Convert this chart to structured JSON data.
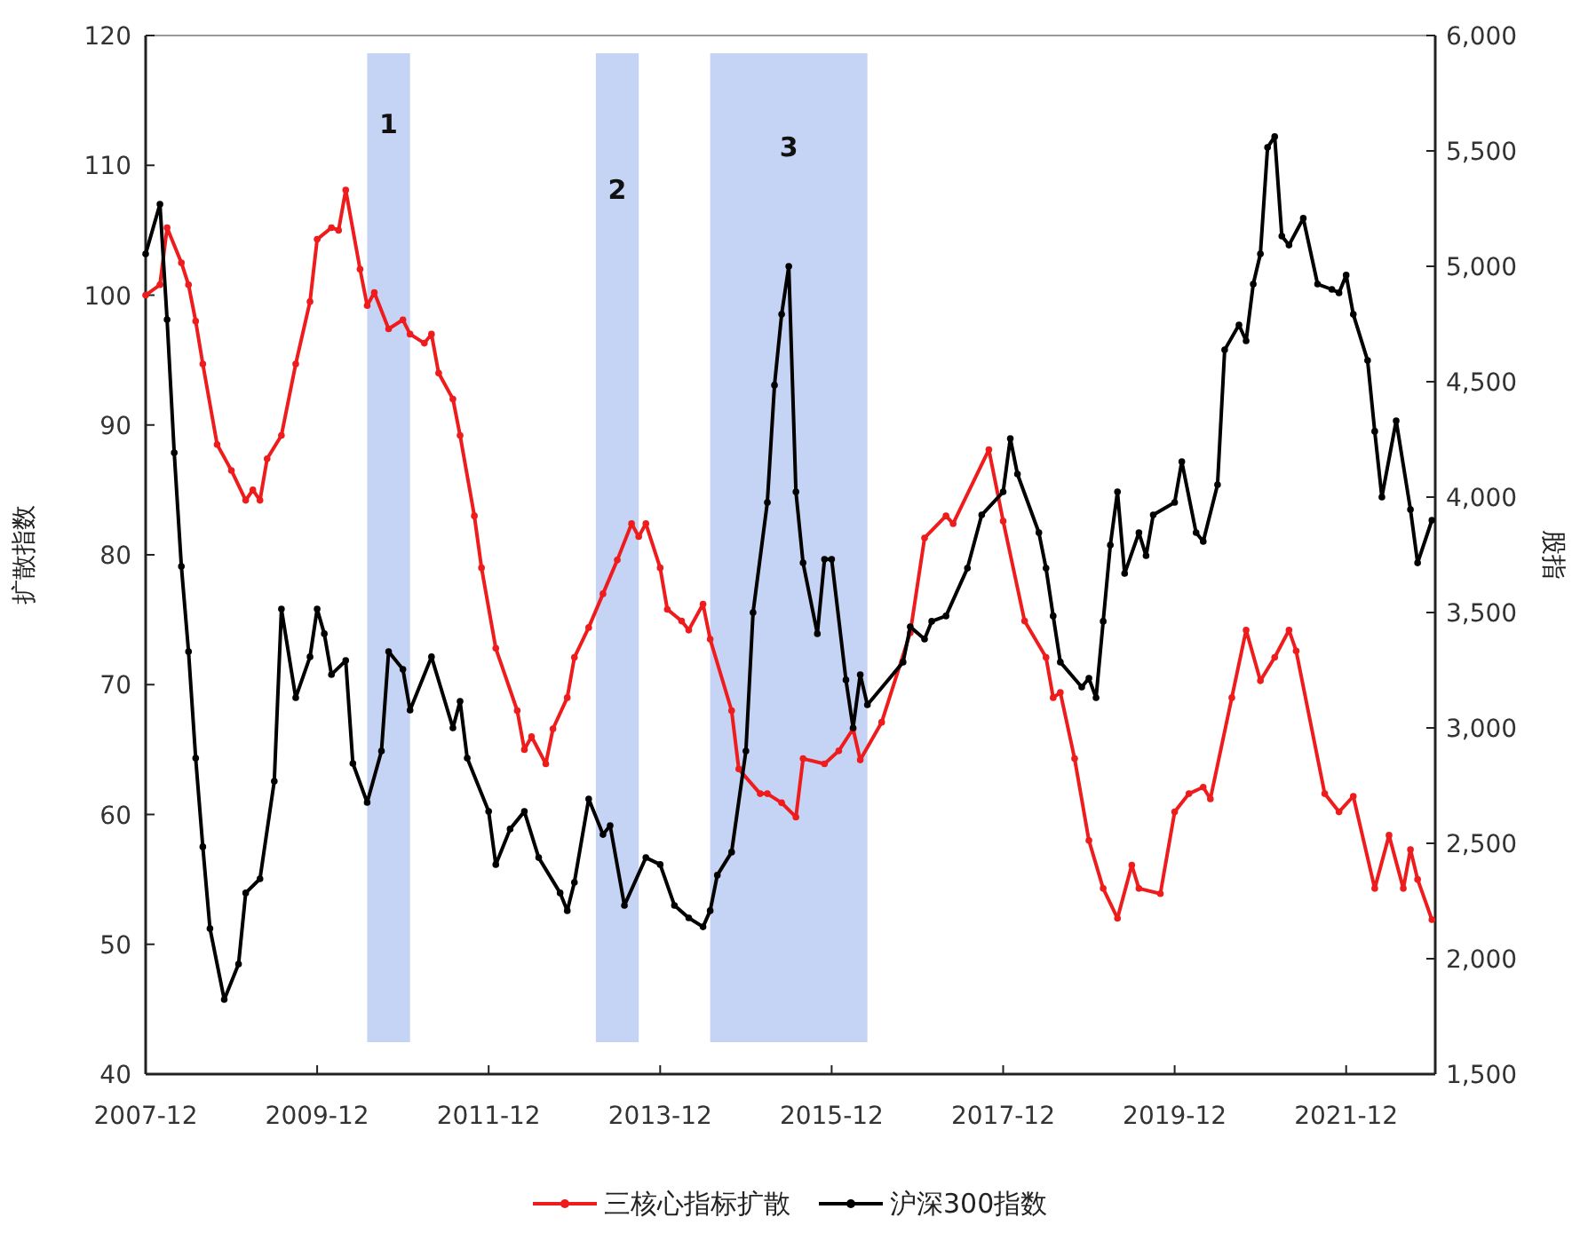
{
  "chart_data": {
    "type": "line",
    "ylabel": "扩散指数",
    "y2label": "股指",
    "xlim": [
      "2007-12",
      "2022-12-15"
    ],
    "xticks": [
      {
        "value": "2007-12",
        "label": "2007-12"
      },
      {
        "value": "2009-12",
        "label": "2009-12"
      },
      {
        "value": "2011-12",
        "label": "2011-12"
      },
      {
        "value": "2013-12",
        "label": "2013-12"
      },
      {
        "value": "2015-12",
        "label": "2015-12"
      },
      {
        "value": "2017-12",
        "label": "2017-12"
      },
      {
        "value": "2019-12",
        "label": "2019-12"
      },
      {
        "value": "2021-12",
        "label": "2021-12"
      }
    ],
    "ylim": [
      40,
      120
    ],
    "yticks": [
      40,
      50,
      60,
      70,
      80,
      90,
      100,
      110,
      120
    ],
    "y2lim": [
      1500,
      6000
    ],
    "y2ticks": [
      {
        "value": 1500,
        "label": "1,500"
      },
      {
        "value": 2000,
        "label": "2,000"
      },
      {
        "value": 2500,
        "label": "2,500"
      },
      {
        "value": 3000,
        "label": "3,000"
      },
      {
        "value": 3500,
        "label": "3,500"
      },
      {
        "value": 4000,
        "label": "4,000"
      },
      {
        "value": 4500,
        "label": "4,500"
      },
      {
        "value": 5000,
        "label": "5,000"
      },
      {
        "value": 5500,
        "label": "5,500"
      },
      {
        "value": 6000,
        "label": "6,000"
      }
    ],
    "bands": [
      {
        "axis": "x",
        "from": "2010-07",
        "to": "2011-01",
        "label": "1",
        "color": "#c5d3f5"
      },
      {
        "axis": "x",
        "from": "2013-03",
        "to": "2013-09",
        "label": "2",
        "color": "#c5d3f5"
      },
      {
        "axis": "x",
        "from": "2014-07",
        "to": "2016-05",
        "label": "3",
        "color": "#c5d3f5"
      }
    ],
    "legend": "bottom",
    "grid": false,
    "marker": "circle",
    "line_style": "solid",
    "series": [
      {
        "name": "三核心指标扩散",
        "color": "#ee1c1c",
        "x": [
          "2007-12",
          "2008-02",
          "2008-03",
          "2008-05",
          "2008-06",
          "2008-07",
          "2008-08",
          "2008-10",
          "2008-12",
          "2009-02",
          "2009-03",
          "2009-04",
          "2009-05",
          "2009-07",
          "2009-09",
          "2009-11",
          "2009-12",
          "2010-02",
          "2010-03",
          "2010-04",
          "2010-06",
          "2010-07",
          "2010-08",
          "2010-10",
          "2010-12",
          "2011-01",
          "2011-03",
          "2011-04",
          "2011-05",
          "2011-07",
          "2011-08",
          "2011-10",
          "2011-11",
          "2012-01",
          "2012-04",
          "2012-05",
          "2012-06",
          "2012-08",
          "2012-09",
          "2012-11",
          "2012-12",
          "2013-02",
          "2013-04",
          "2013-06",
          "2013-08",
          "2013-09",
          "2013-10",
          "2013-12",
          "2014-01",
          "2014-03",
          "2014-04",
          "2014-06",
          "2014-07",
          "2014-10",
          "2014-11",
          "2015-02",
          "2015-03",
          "2015-05",
          "2015-07",
          "2015-08",
          "2015-11",
          "2016-01",
          "2016-03",
          "2016-04",
          "2016-07",
          "2016-11",
          "2017-01",
          "2017-04",
          "2017-05",
          "2017-10",
          "2017-12",
          "2018-03",
          "2018-06",
          "2018-07",
          "2018-08",
          "2018-10",
          "2018-12",
          "2019-02",
          "2019-04",
          "2019-06",
          "2019-07",
          "2019-10",
          "2019-12",
          "2020-02",
          "2020-04",
          "2020-05",
          "2020-08",
          "2020-10",
          "2020-12",
          "2021-02",
          "2021-04",
          "2021-05",
          "2021-09",
          "2021-11",
          "2022-01",
          "2022-04",
          "2022-06",
          "2022-08",
          "2022-09",
          "2022-10",
          "2022-12"
        ],
        "values": [
          100,
          100.8,
          105.2,
          102.5,
          100.8,
          98,
          94.7,
          88.5,
          86.5,
          84.2,
          85,
          84.2,
          87.4,
          89.2,
          94.7,
          99.5,
          104.3,
          105.2,
          105,
          108.1,
          102,
          99.2,
          100.2,
          97.4,
          98.1,
          97,
          96.3,
          97,
          94,
          92,
          89.2,
          83,
          79,
          72.8,
          68,
          65,
          66,
          63.9,
          66.6,
          69,
          72.1,
          74.4,
          77,
          79.6,
          82.4,
          81.4,
          82.4,
          79,
          75.8,
          74.9,
          74.2,
          76.2,
          73.5,
          68,
          63.5,
          61.6,
          61.6,
          60.9,
          59.8,
          64.3,
          63.9,
          64.9,
          66.6,
          64.2,
          67.1,
          74,
          81.3,
          83,
          82.4,
          88.1,
          82.6,
          74.9,
          72.1,
          69,
          69.4,
          64.3,
          58,
          54.3,
          52,
          56.1,
          54.3,
          53.9,
          60.2,
          61.6,
          62.1,
          61.2,
          69,
          74.2,
          70.3,
          72.1,
          74.2,
          72.6,
          61.6,
          60.2,
          61.4,
          54.3,
          58.4,
          54.3,
          57.3,
          55,
          51.9
        ]
      },
      {
        "name": "沪深300指数",
        "color": "#000000",
        "axis": "y2",
        "x": [
          "2007-12",
          "2008-02",
          "2008-03",
          "2008-04",
          "2008-05",
          "2008-06",
          "2008-07",
          "2008-08",
          "2008-09",
          "2008-11",
          "2009-01",
          "2009-02",
          "2009-04",
          "2009-06",
          "2009-07",
          "2009-09",
          "2009-11",
          "2009-12",
          "2010-01",
          "2010-02",
          "2010-04",
          "2010-05",
          "2010-07",
          "2010-09",
          "2010-10",
          "2010-12",
          "2011-01",
          "2011-04",
          "2011-07",
          "2011-08",
          "2011-09",
          "2011-12",
          "2012-01",
          "2012-03",
          "2012-05",
          "2012-07",
          "2012-10",
          "2012-11",
          "2012-12",
          "2013-02",
          "2013-04",
          "2013-05",
          "2013-07",
          "2013-10",
          "2013-12",
          "2014-02",
          "2014-04",
          "2014-06",
          "2014-07",
          "2014-08",
          "2014-10",
          "2014-12",
          "2015-01",
          "2015-03",
          "2015-04",
          "2015-05",
          "2015-06",
          "2015-07",
          "2015-08",
          "2015-10",
          "2015-11",
          "2015-12",
          "2016-02",
          "2016-03",
          "2016-04",
          "2016-05",
          "2016-10",
          "2016-11",
          "2017-01",
          "2017-02",
          "2017-04",
          "2017-07",
          "2017-09",
          "2017-12",
          "2018-01",
          "2018-02",
          "2018-05",
          "2018-06",
          "2018-07",
          "2018-08",
          "2018-11",
          "2018-12",
          "2019-01",
          "2019-02",
          "2019-03",
          "2019-04",
          "2019-05",
          "2019-07",
          "2019-08",
          "2019-09",
          "2019-12",
          "2020-01",
          "2020-03",
          "2020-04",
          "2020-06",
          "2020-07",
          "2020-09",
          "2020-10",
          "2020-11",
          "2020-12",
          "2021-01",
          "2021-02",
          "2021-03",
          "2021-04",
          "2021-06",
          "2021-08",
          "2021-10",
          "2021-11",
          "2021-12",
          "2022-01",
          "2022-03",
          "2022-04",
          "2022-05",
          "2022-07",
          "2022-09",
          "2022-10",
          "2022-12"
        ],
        "values": [
          5054,
          5269,
          4769,
          4192,
          3700,
          3331,
          2869,
          2485,
          2131,
          1823,
          1977,
          2285,
          2346,
          2769,
          3515,
          3131,
          3308,
          3515,
          3408,
          3231,
          3292,
          2846,
          2677,
          2900,
          3331,
          3254,
          3077,
          3308,
          3000,
          3115,
          2869,
          2638,
          2408,
          2562,
          2638,
          2438,
          2285,
          2208,
          2331,
          2692,
          2538,
          2577,
          2231,
          2438,
          2408,
          2231,
          2177,
          2138,
          2208,
          2362,
          2462,
          2900,
          3500,
          3977,
          4485,
          4792,
          5000,
          4023,
          3715,
          3408,
          3731,
          3731,
          3208,
          3000,
          3231,
          3100,
          3285,
          3438,
          3385,
          3462,
          3485,
          3692,
          3923,
          4023,
          4254,
          4100,
          3846,
          3692,
          3485,
          3285,
          3177,
          3215,
          3131,
          3462,
          3792,
          4023,
          3669,
          3846,
          3746,
          3923,
          3977,
          4154,
          3846,
          3808,
          4054,
          4638,
          4746,
          4677,
          4923,
          5054,
          5515,
          5562,
          5131,
          5092,
          5208,
          4923,
          4900,
          4885,
          4962,
          4792,
          4592,
          4285,
          4000,
          4331,
          3946,
          3715,
          3900
        ]
      }
    ]
  }
}
